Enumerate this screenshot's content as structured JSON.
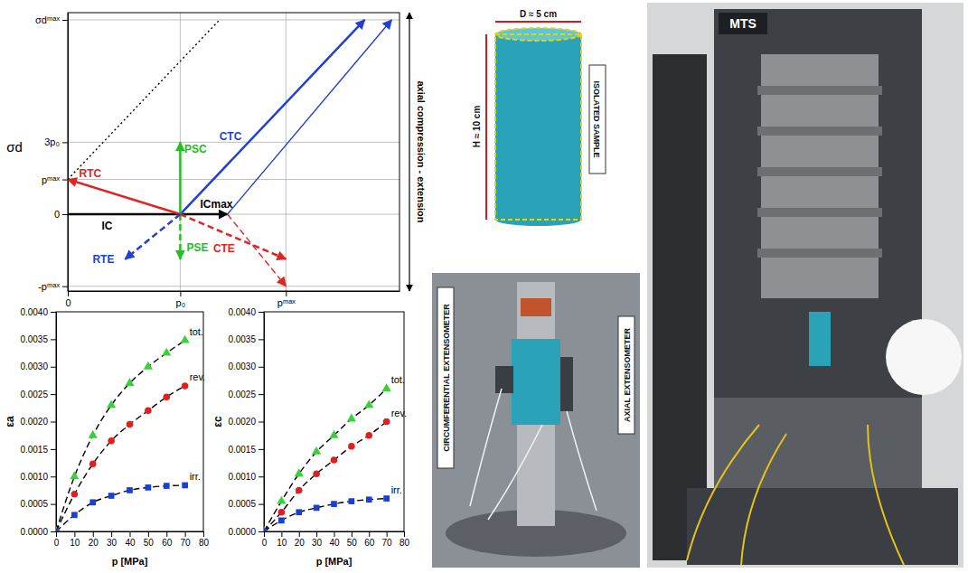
{
  "chart_data": [
    {
      "type": "line",
      "y_label": "σd",
      "annotations": [
        {
          "text": "axial compression - extension"
        }
      ],
      "xlim": [
        0,
        2.95
      ],
      "xticks": [
        0,
        {
          "value": 1,
          "label": "p₀"
        },
        {
          "value": 1.94,
          "label": "pᵐᵃˣ"
        }
      ],
      "ylim": [
        -3.2,
        8.4
      ],
      "yticks": [
        {
          "value": -3,
          "label": "-pᵐᵃˣ"
        },
        0,
        {
          "value": 1.45,
          "label": "pᵐᵃˣ"
        },
        {
          "value": 3,
          "label": "3p₀"
        },
        {
          "value": 8.1,
          "label": "σdᵐᵃˣ"
        }
      ],
      "grid": true,
      "series": [
        {
          "name": "IC",
          "color": "#000000",
          "line_style": "solid",
          "x": [
            0,
            1
          ],
          "values": [
            0,
            0
          ]
        },
        {
          "name": "ICmax",
          "color": "#000000",
          "line_style": "solid",
          "marker": "arrow",
          "x": [
            1,
            1.42
          ],
          "values": [
            0,
            0
          ]
        },
        {
          "name": "CTC",
          "color": "#1f3fd6",
          "line_style": "solid",
          "marker": "arrow",
          "x": [
            1,
            2.64
          ],
          "values": [
            0,
            8.1
          ]
        },
        {
          "color": "#1f3fd6",
          "line_style": "solid",
          "marker": "arrow",
          "x": [
            1.42,
            2.88
          ],
          "values": [
            0,
            8.1
          ]
        },
        {
          "name": "PSC",
          "color": "#22c022",
          "line_style": "solid",
          "marker": "arrow",
          "x": [
            1,
            1
          ],
          "values": [
            0,
            3
          ]
        },
        {
          "name": "PSE",
          "color": "#22c022",
          "line_style": "dashed",
          "marker": "arrow",
          "x": [
            1,
            1
          ],
          "values": [
            0,
            -1.87
          ]
        },
        {
          "name": "RTC",
          "color": "#e02424",
          "line_style": "solid",
          "marker": "arrow",
          "x": [
            1,
            0
          ],
          "values": [
            0,
            1.45
          ]
        },
        {
          "name": "RTE",
          "color": "#1f3fd6",
          "line_style": "dashed",
          "marker": "arrow",
          "x": [
            1,
            0.51
          ],
          "values": [
            0,
            -1.87
          ]
        },
        {
          "name": "CTE",
          "color": "#e02424",
          "line_style": "dashed",
          "marker": "arrow",
          "x": [
            1,
            1.94
          ],
          "values": [
            0,
            -1.87
          ]
        },
        {
          "color": "#e02424",
          "line_style": "dashed",
          "marker": "arrow",
          "x": [
            1.42,
            1.94
          ],
          "values": [
            0,
            -3
          ]
        },
        {
          "color": "#000000",
          "line_style": "dotted",
          "x": [
            0,
            1.35
          ],
          "values": [
            1.45,
            8.1
          ]
        }
      ]
    },
    {
      "type": "line",
      "x_label": "p [MPa]",
      "y_label": "εa",
      "xlim": [
        0,
        80
      ],
      "xticks": [
        0,
        10,
        20,
        30,
        40,
        50,
        60,
        70,
        80
      ],
      "ylim": [
        0,
        0.004
      ],
      "yticks": [
        {
          "value": 0,
          "label": "0.0000"
        },
        0.0005,
        {
          "value": 0.001,
          "label": "0.0010"
        },
        0.0015,
        {
          "value": 0.002,
          "label": "0.0020"
        },
        0.0025,
        {
          "value": 0.003,
          "label": "0.0030"
        },
        0.0035,
        {
          "value": 0.004,
          "label": "0.0040"
        }
      ],
      "x": [
        0,
        10,
        20,
        30,
        40,
        50,
        60,
        70
      ],
      "series": [
        {
          "name": "tot.",
          "color": "#3ccf3c",
          "marker": "triangle",
          "line_style": "dashed",
          "values": [
            0,
            0.001,
            0.00175,
            0.0023,
            0.0027,
            0.003,
            0.00325,
            0.00348
          ]
        },
        {
          "name": "rev.",
          "color": "#e02020",
          "marker": "circle",
          "line_style": "dashed",
          "values": [
            0,
            0.00068,
            0.00123,
            0.00165,
            0.00195,
            0.0022,
            0.00245,
            0.00265
          ]
        },
        {
          "name": "irr.",
          "color": "#1a3fd6",
          "marker": "square",
          "line_style": "dashed",
          "values": [
            0,
            0.0003,
            0.00053,
            0.00065,
            0.00075,
            0.0008,
            0.00083,
            0.00084
          ]
        }
      ]
    },
    {
      "type": "line",
      "x_label": "p [MPa]",
      "y_label": "εc",
      "xlim": [
        0,
        80
      ],
      "xticks": [
        0,
        10,
        20,
        30,
        40,
        50,
        60,
        70,
        80
      ],
      "ylim": [
        0,
        0.004
      ],
      "yticks": [
        {
          "value": 0,
          "label": "0.0000"
        },
        0.0005,
        {
          "value": 0.001,
          "label": "0.0010"
        },
        0.0015,
        {
          "value": 0.002,
          "label": "0.0020"
        },
        0.0025,
        {
          "value": 0.003,
          "label": "0.0030"
        },
        0.0035,
        {
          "value": 0.004,
          "label": "0.0040"
        }
      ],
      "x": [
        0,
        10,
        20,
        30,
        40,
        50,
        60,
        70
      ],
      "series": [
        {
          "name": "tot.",
          "color": "#3ccf3c",
          "marker": "triangle",
          "line_style": "dashed",
          "values": [
            0,
            0.00055,
            0.00105,
            0.00145,
            0.00175,
            0.00205,
            0.0023,
            0.0026
          ]
        },
        {
          "name": "rev.",
          "color": "#e02020",
          "marker": "circle",
          "line_style": "dashed",
          "values": [
            0,
            0.00035,
            0.00075,
            0.00105,
            0.0013,
            0.00155,
            0.00175,
            0.002
          ]
        },
        {
          "name": "irr.",
          "color": "#1a3fd6",
          "marker": "square",
          "line_style": "dashed",
          "values": [
            0,
            0.0002,
            0.00035,
            0.00043,
            0.0005,
            0.00055,
            0.00058,
            0.0006
          ]
        }
      ]
    }
  ],
  "photos": {
    "sample": {
      "diameter": "D ≈ 5 cm",
      "height": "H ≈ 10 cm",
      "label": "ISOLATED SAMPLE"
    },
    "setup": {
      "circumferential": "CIRCUMFERENTIAL EXTENSOMETER",
      "axial": "AXIAL EXTENSOMETER"
    },
    "machine": {
      "brand": "MTS"
    }
  }
}
